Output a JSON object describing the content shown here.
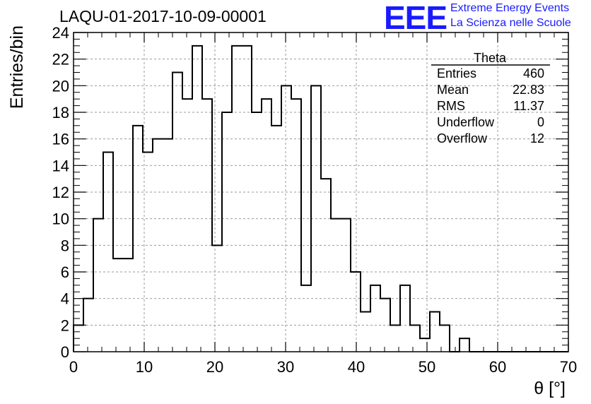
{
  "header": {
    "title": "LAQU-01-2017-10-09-00001",
    "logo_text": "EEE",
    "tagline_1": "Extreme Energy Events",
    "tagline_2": "La Scienza nelle Scuole",
    "logo_color": "#1a1aff"
  },
  "stats_box": {
    "name": "Theta",
    "rows": [
      {
        "label": "Entries",
        "value": "460"
      },
      {
        "label": "Mean",
        "value": "22.83"
      },
      {
        "label": "RMS",
        "value": "11.37"
      },
      {
        "label": "Underflow",
        "value": "0"
      },
      {
        "label": "Overflow",
        "value": "12"
      }
    ]
  },
  "chart_data": {
    "type": "bar",
    "style": "step-histogram",
    "xlabel": "θ [°]",
    "ylabel": "Entries/bin",
    "xlim": [
      0,
      70
    ],
    "ylim": [
      0,
      24
    ],
    "grid": true,
    "bin_width": 1.4,
    "x_ticks": [
      "0",
      "10",
      "20",
      "30",
      "40",
      "50",
      "60",
      "70"
    ],
    "y_ticks": [
      "0",
      "2",
      "4",
      "6",
      "8",
      "10",
      "12",
      "14",
      "16",
      "18",
      "20",
      "22",
      "24"
    ],
    "values": [
      2,
      4,
      10,
      15,
      7,
      7,
      17,
      15,
      16,
      16,
      21,
      19,
      23,
      19,
      8,
      18,
      23,
      23,
      18,
      19,
      17,
      20,
      19,
      5,
      20,
      13,
      10,
      10,
      6,
      3,
      5,
      4,
      2,
      5,
      2,
      1,
      3,
      2,
      0,
      1,
      0,
      0,
      0,
      0,
      0,
      0,
      0,
      0,
      0,
      0
    ]
  }
}
